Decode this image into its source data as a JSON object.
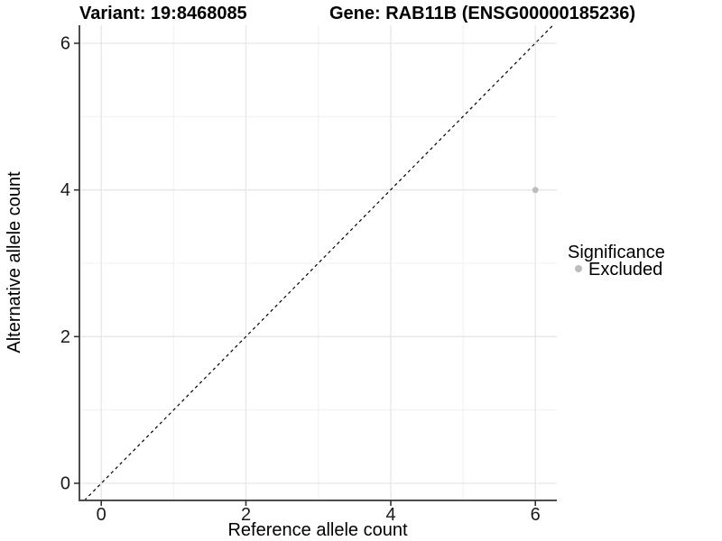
{
  "titles": {
    "variant": "Variant: 19:8468085",
    "gene": "Gene: RAB11B (ENSG00000185236)"
  },
  "axes": {
    "x": {
      "label": "Reference allele count",
      "tick_labels": [
        "0",
        "2",
        "4",
        "6"
      ]
    },
    "y": {
      "label": "Alternative allele count",
      "tick_labels": [
        "0",
        "2",
        "4",
        "6"
      ]
    }
  },
  "legend": {
    "title": "Significance",
    "items": [
      {
        "label": "Excluded",
        "color": "#bdbdbd",
        "marker": "circle"
      }
    ]
  },
  "colors": {
    "background": "#ffffff",
    "axis_line": "#4d4d4d",
    "grid_major": "#e6e6e6",
    "grid_minor": "#f0f0f0",
    "reference_line": "#000000",
    "excluded_point": "#bdbdbd"
  },
  "chart_data": {
    "type": "scatter",
    "title": "Variant: 19:8468085 | Gene: RAB11B (ENSG00000185236)",
    "xlabel": "Reference allele count",
    "ylabel": "Alternative allele count",
    "xlim": [
      -0.3,
      6.3
    ],
    "ylim": [
      -0.3,
      6.3
    ],
    "x_ticks": [
      0,
      2,
      4,
      6
    ],
    "y_ticks": [
      0,
      2,
      4,
      6
    ],
    "grid": "major and minor gridlines at every integer, light gray on white",
    "legend_position": "right",
    "legend_title": "Significance",
    "series": [
      {
        "name": "Excluded",
        "color": "#bdbdbd",
        "marker": "circle",
        "points": [
          {
            "x": 6,
            "y": 4
          }
        ]
      }
    ],
    "reference_line": {
      "equation": "y = x",
      "style": "dashed",
      "color": "#000000"
    }
  }
}
